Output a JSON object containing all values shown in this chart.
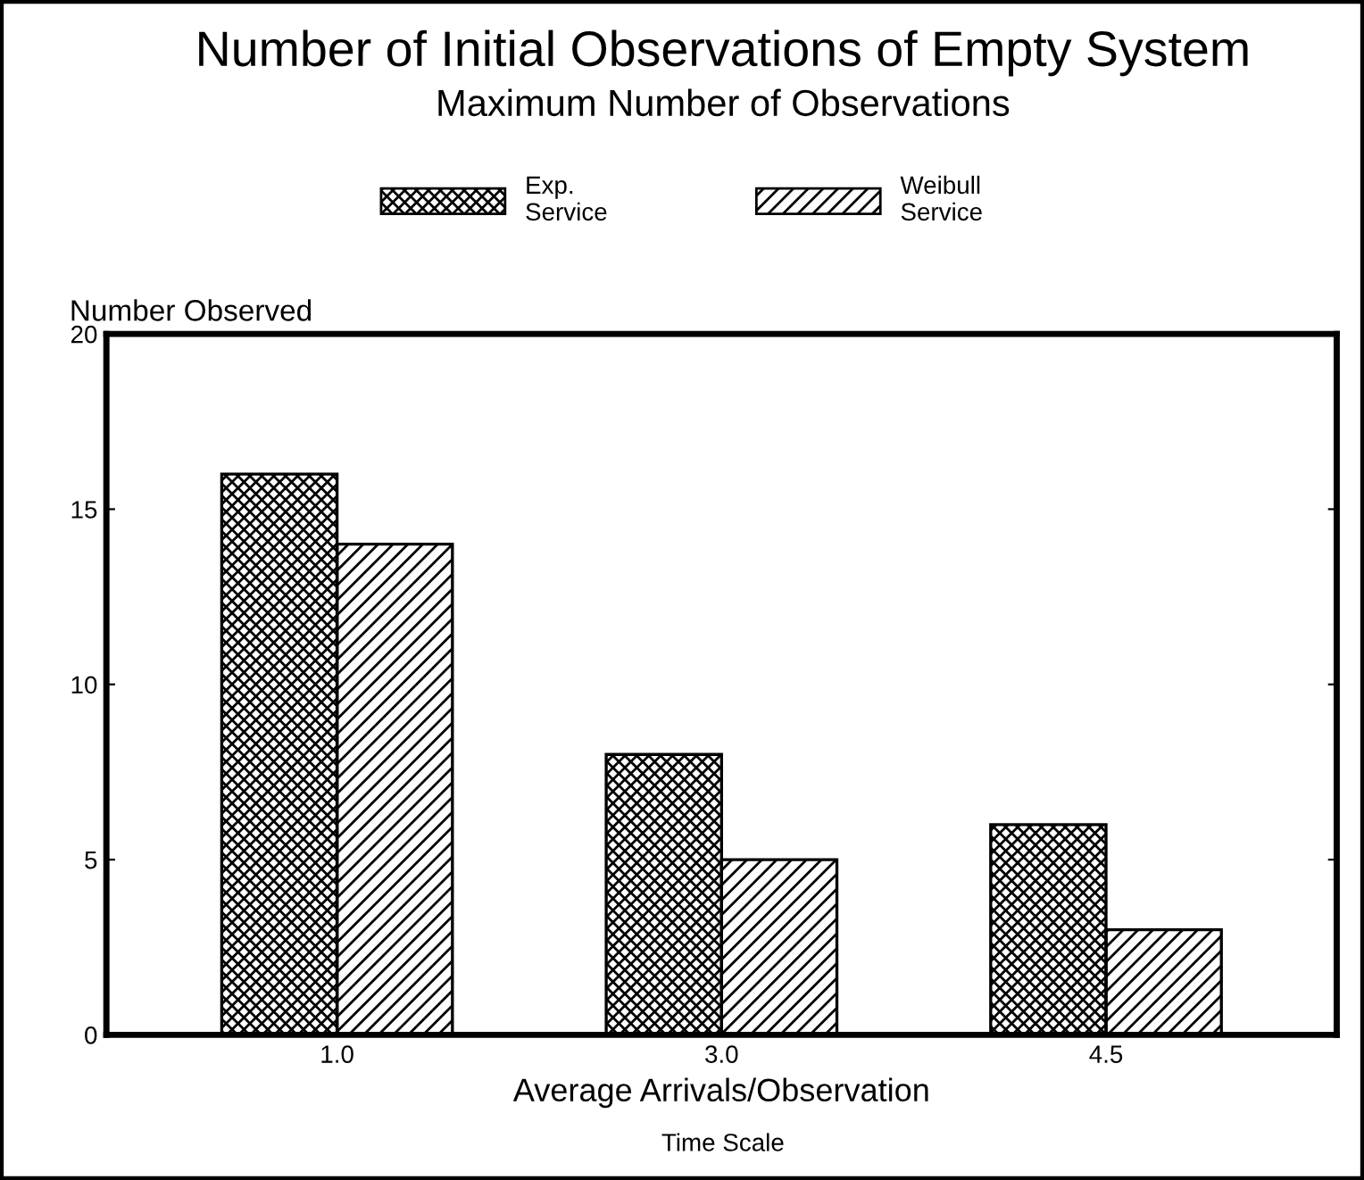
{
  "chart_data": {
    "type": "bar",
    "title": "Number of Initial Observations of Empty System",
    "subtitle": "Maximum Number of Observations",
    "xlabel": "Average Arrivals/Observation",
    "ylabel": "Number Observed",
    "annotations": [
      "Time Scale"
    ],
    "categories": [
      "1.0",
      "3.0",
      "4.5"
    ],
    "series": [
      {
        "name": "Exp.\nService",
        "color": "#000000",
        "values": [
          16,
          8,
          6
        ]
      },
      {
        "name": "Weibull\nService",
        "color": "#000000",
        "values": [
          14,
          5,
          3
        ]
      }
    ],
    "ylim": [
      0,
      20
    ],
    "yticks": [
      0,
      5,
      10,
      15,
      20
    ],
    "grid": false,
    "legend": "top"
  }
}
